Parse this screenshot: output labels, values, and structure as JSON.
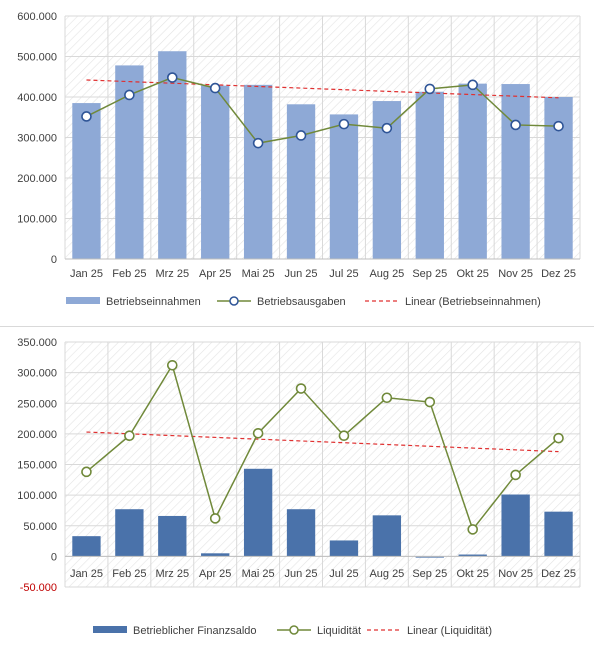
{
  "chart_data": [
    {
      "type": "bar",
      "categories": [
        "Jan 25",
        "Feb 25",
        "Mrz 25",
        "Apr 25",
        "Mai 25",
        "Jun 25",
        "Jul 25",
        "Aug 25",
        "Sep 25",
        "Okt 25",
        "Nov 25",
        "Dez 25"
      ],
      "series": [
        {
          "name": "Betriebseinnahmen",
          "type": "bar",
          "color": "#8ea9d6",
          "values": [
            385000,
            478000,
            513000,
            428000,
            430000,
            382000,
            357000,
            390000,
            413000,
            433000,
            432000,
            400000
          ]
        },
        {
          "name": "Betriebsausgaben",
          "type": "line",
          "color": "#70893a",
          "values": [
            352000,
            405000,
            448000,
            422000,
            286000,
            305000,
            333000,
            323000,
            420000,
            430000,
            331000,
            328000
          ]
        }
      ],
      "trendline": {
        "name": "Linear (Betriebseinnahmen)",
        "color": "#e03030",
        "start": 442000,
        "end": 398000
      },
      "ylim": [
        0,
        600000
      ],
      "yticks": [
        0,
        100000,
        200000,
        300000,
        400000,
        500000,
        600000
      ],
      "ytick_labels": [
        "0",
        "100.000",
        "200.000",
        "300.000",
        "400.000",
        "500.000",
        "600.000"
      ],
      "legend_position": "bottom",
      "grid": true
    },
    {
      "type": "bar",
      "categories": [
        "Jan 25",
        "Feb 25",
        "Mrz 25",
        "Apr 25",
        "Mai 25",
        "Jun 25",
        "Jul 25",
        "Aug 25",
        "Sep 25",
        "Okt 25",
        "Nov 25",
        "Dez 25"
      ],
      "series": [
        {
          "name": "Betrieblicher Finanzsaldo",
          "type": "bar",
          "color": "#4a72aa",
          "values": [
            33000,
            77000,
            66000,
            5000,
            143000,
            77000,
            26000,
            67000,
            -2000,
            3000,
            101000,
            73000
          ]
        },
        {
          "name": "Liquidität",
          "type": "line",
          "color": "#70893a",
          "values": [
            138000,
            197000,
            312000,
            62000,
            201000,
            274000,
            197000,
            259000,
            252000,
            44000,
            133000,
            193000
          ]
        }
      ],
      "trendline": {
        "name": "Linear (Liquidität)",
        "color": "#e03030",
        "start": 203000,
        "end": 171000
      },
      "ylim": [
        -50000,
        350000
      ],
      "yticks": [
        -50000,
        0,
        50000,
        100000,
        150000,
        200000,
        250000,
        300000,
        350000
      ],
      "ytick_labels": [
        "-50.000",
        "0",
        "50.000",
        "100.000",
        "150.000",
        "200.000",
        "250.000",
        "300.000",
        "350.000"
      ],
      "legend_position": "bottom",
      "grid": true
    }
  ]
}
